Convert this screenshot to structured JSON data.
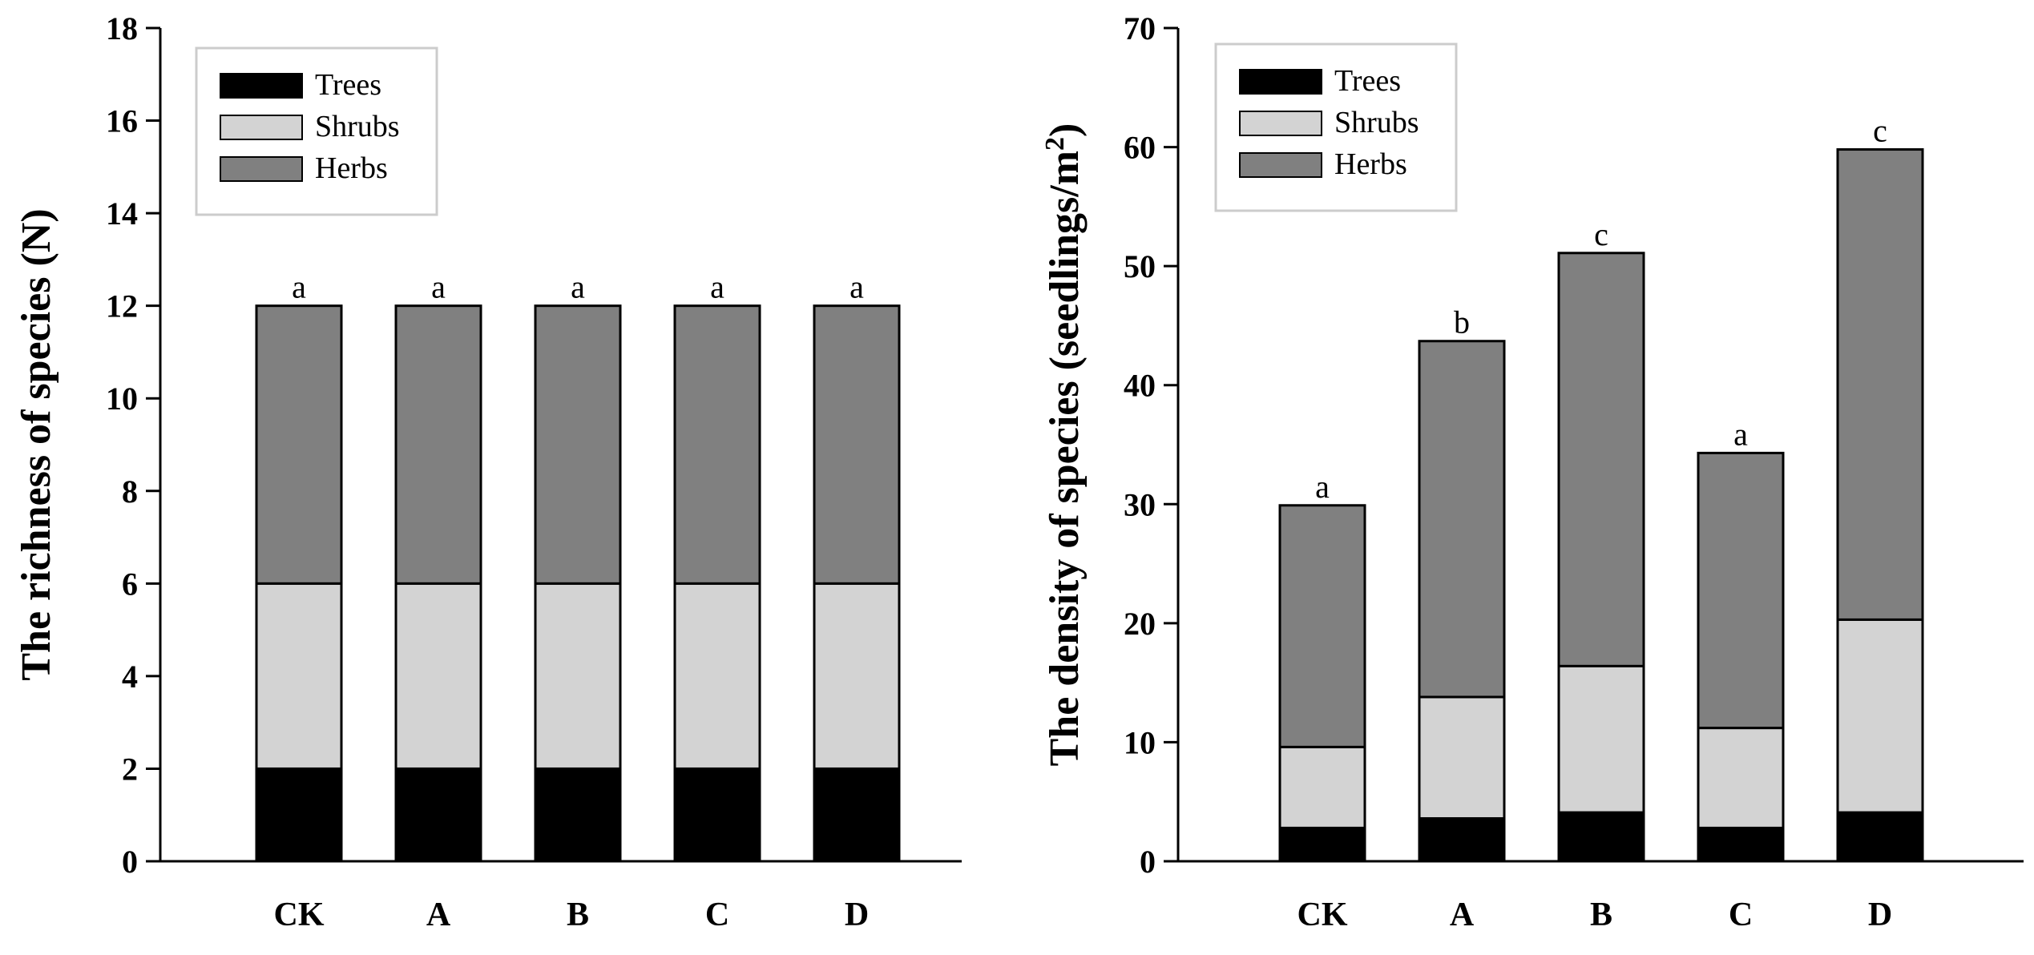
{
  "colors": {
    "Trees": "#000000",
    "Shrubs": "#d3d3d3",
    "Herbs": "#808080"
  },
  "chart_data": [
    {
      "type": "bar",
      "stacked": true,
      "ylabel": "The richness of species (N)",
      "ylim": [
        0,
        18
      ],
      "yticks": [
        0,
        2,
        4,
        6,
        8,
        10,
        12,
        14,
        16,
        18
      ],
      "categories": [
        "CK",
        "A",
        "B",
        "C",
        "D"
      ],
      "series": [
        {
          "name": "Trees",
          "values": [
            2,
            2,
            2,
            2,
            2
          ]
        },
        {
          "name": "Shrubs",
          "values": [
            4,
            4,
            4,
            4,
            4
          ]
        },
        {
          "name": "Herbs",
          "values": [
            6,
            6,
            6,
            6,
            6
          ]
        }
      ],
      "annotations": [
        "a",
        "a",
        "a",
        "a",
        "a"
      ],
      "legend": "top-left"
    },
    {
      "type": "bar",
      "stacked": true,
      "ylabel": "The density of species (seedlings/m",
      "ylabel_sup": "2",
      "ylabel_end": ")",
      "ylim": [
        0,
        70
      ],
      "yticks": [
        0,
        10,
        20,
        30,
        40,
        50,
        60,
        70
      ],
      "categories": [
        "CK",
        "A",
        "B",
        "C",
        "D"
      ],
      "series": [
        {
          "name": "Trees",
          "values": [
            2.8,
            3.6,
            4.1,
            2.8,
            4.1
          ]
        },
        {
          "name": "Shrubs",
          "values": [
            6.8,
            10.2,
            12.3,
            8.4,
            16.2
          ]
        },
        {
          "name": "Herbs",
          "values": [
            20.3,
            29.9,
            34.7,
            23.1,
            39.5
          ]
        }
      ],
      "annotations": [
        "a",
        "b",
        "c",
        "a",
        "c"
      ],
      "legend": "top-left"
    }
  ]
}
